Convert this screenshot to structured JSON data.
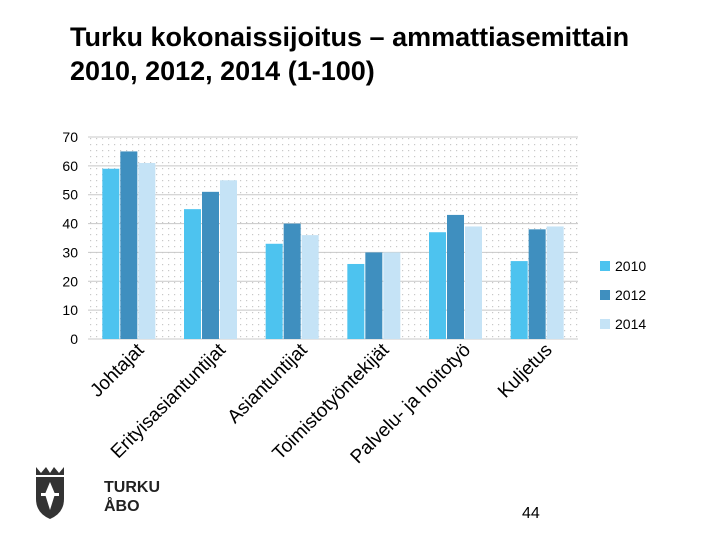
{
  "title": "Turku kokonaissijoitus – ammattiasemittain 2010, 2012, 2014 (1-100)",
  "page_number": "44",
  "logo": {
    "line1": "TURKU",
    "line2": "ÅBO",
    "icon": "turku-coat-of-arms-icon"
  },
  "colors": {
    "2010": "#4dc3ef",
    "2012": "#3f8fbf",
    "2014": "#c5e3f6",
    "grid": "#c8c8c8",
    "plot_bg": "#ffffff"
  },
  "chart_data": {
    "type": "bar",
    "title": "Turku kokonaissijoitus – ammattiasemittain 2010, 2012, 2014 (1-100)",
    "xlabel": "",
    "ylabel": "",
    "ylim": [
      0,
      70
    ],
    "yticks": [
      0,
      10,
      20,
      30,
      40,
      50,
      60,
      70
    ],
    "grid": true,
    "legend": "right",
    "categories": [
      "Johtajat",
      "Erityisasiantuntijat",
      "Asiantuntijat",
      "Toimistotyöntekijät",
      "Palvelu- ja hoitotyö",
      "Kuljetus"
    ],
    "series": [
      {
        "name": "2010",
        "values": [
          59,
          45,
          33,
          26,
          37,
          27
        ]
      },
      {
        "name": "2012",
        "values": [
          65,
          51,
          40,
          30,
          43,
          38
        ]
      },
      {
        "name": "2014",
        "values": [
          61,
          55,
          36,
          30,
          39,
          39
        ]
      }
    ]
  }
}
